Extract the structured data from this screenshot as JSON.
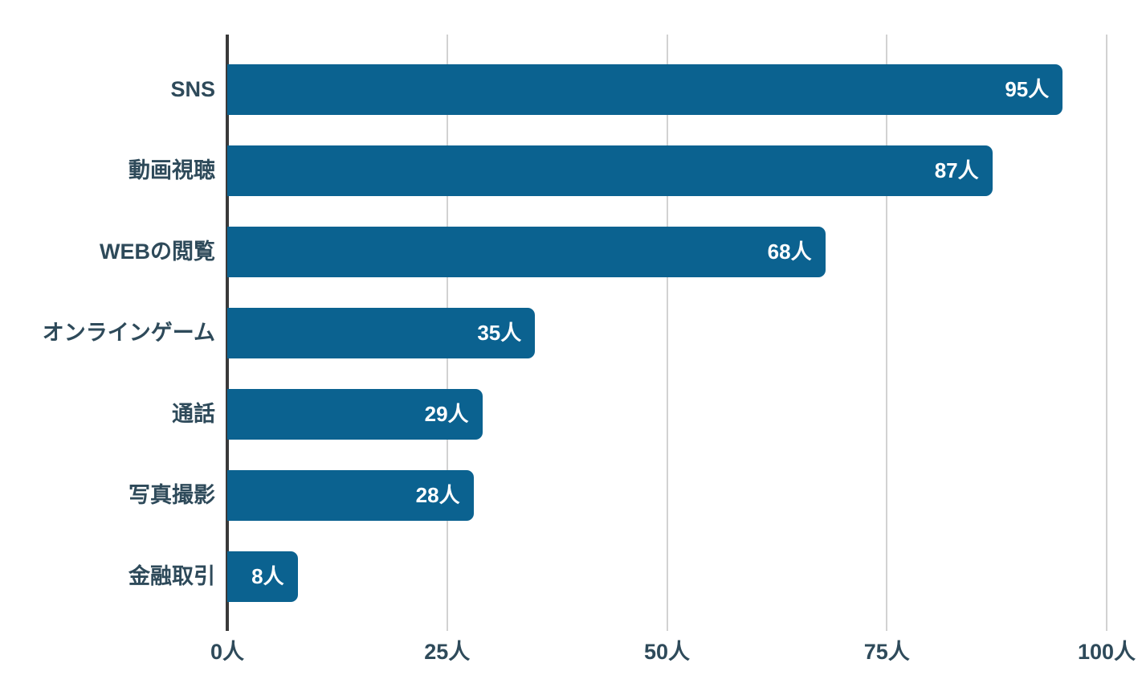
{
  "chart_data": {
    "type": "bar",
    "orientation": "horizontal",
    "title": "",
    "categories": [
      "SNS",
      "動画視聴",
      "WEBの閲覧",
      "オンラインゲーム",
      "通話",
      "写真撮影",
      "金融取引"
    ],
    "values": [
      95,
      87,
      68,
      35,
      29,
      28,
      8
    ],
    "value_labels": [
      "95人",
      "87人",
      "68人",
      "35人",
      "29人",
      "28人",
      "8人"
    ],
    "unit": "人",
    "xlim": [
      0,
      100
    ],
    "x_ticks": [
      {
        "value": 0,
        "label": "0人"
      },
      {
        "value": 25,
        "label": "25人"
      },
      {
        "value": 50,
        "label": "50人"
      },
      {
        "value": 75,
        "label": "75人"
      },
      {
        "value": 100,
        "label": "100人"
      }
    ],
    "grid": "vertical",
    "legend_position": "none",
    "colors": {
      "bar": "#0b6290",
      "category_label": "#2e4a5a",
      "tick_label": "#2e4a5a",
      "value_label": "#ffffff",
      "gridline": "#d2d2d2",
      "axis_line": "#3a3a3a",
      "background": "#ffffff"
    }
  }
}
